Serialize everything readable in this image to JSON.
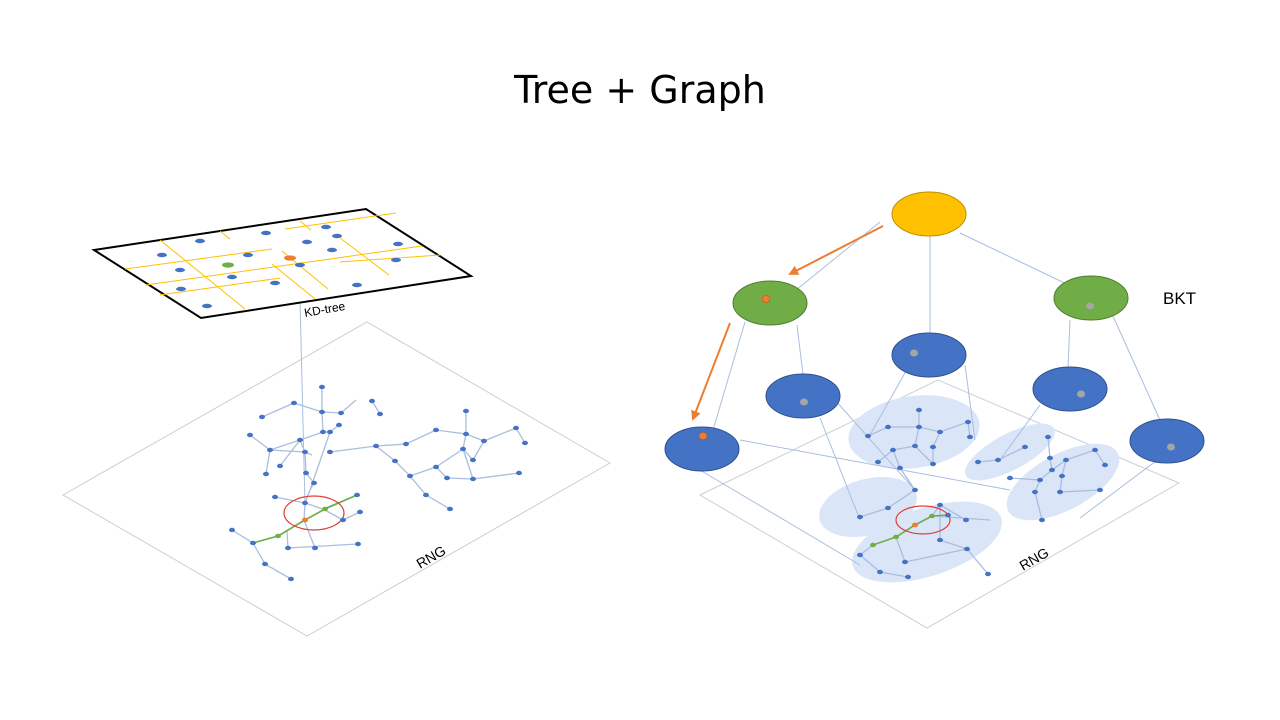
{
  "slide": {
    "title": "Tree + Graph"
  },
  "left_diagram": {
    "kd_tree_label": "KD-tree",
    "graph_label": "RNG"
  },
  "right_diagram": {
    "tree_label": "BKT",
    "graph_label": "RNG"
  },
  "colors": {
    "root_node": "#ffc000",
    "internal_node": "#70ad47",
    "leaf_node": "#4472c4",
    "point": "#4472c4",
    "query_point": "#ed7d31",
    "partition_line": "#ffc000",
    "graph_edge": "#a9bede",
    "path_edge": "#70ad47",
    "search_circle": "#e03c31",
    "arrow": "#ed7d31",
    "cluster_fill": "#dae6f8",
    "plane_border": "#c9cfd8"
  },
  "icons": [
    "kd-tree-grid",
    "rng-graph",
    "bkt-tree",
    "search-arrow"
  ]
}
